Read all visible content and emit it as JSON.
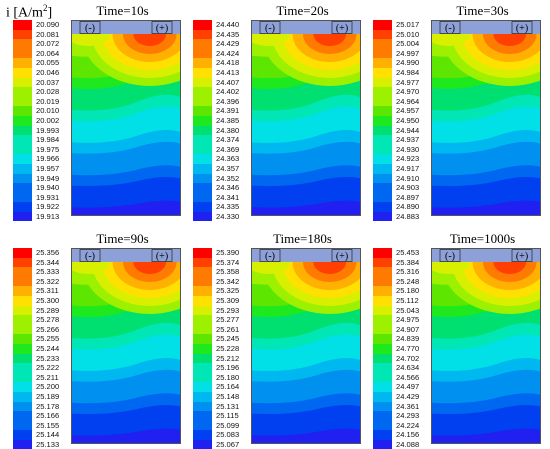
{
  "quantity_label": "i [A/m",
  "quantity_label_sup": "2",
  "quantity_label_end": "]",
  "electrode_minus": "(-)",
  "electrode_plus": "(+)",
  "colors": {
    "scale": [
      "#ff0000",
      "#ff4000",
      "#ff7a00",
      "#ffb000",
      "#ffe000",
      "#d8f000",
      "#9cf000",
      "#5ce600",
      "#1ee81e",
      "#00e070",
      "#00e6b4",
      "#00e0e6",
      "#00b8f0",
      "#0090f0",
      "#0068f0",
      "#0040f0",
      "#2020f0"
    ],
    "header_band": "#8ea0d8"
  },
  "chart_data": [
    {
      "type": "heatmap",
      "title": "Time=10s",
      "legend": [
        "20.090",
        "20.081",
        "20.072",
        "20.064",
        "20.055",
        "20.046",
        "20.037",
        "20.028",
        "20.019",
        "20.010",
        "20.002",
        "19.993",
        "19.984",
        "19.975",
        "19.966",
        "19.957",
        "19.949",
        "19.940",
        "19.931",
        "19.922",
        "19.913"
      ]
    },
    {
      "type": "heatmap",
      "title": "Time=20s",
      "legend": [
        "24.440",
        "24.435",
        "24.429",
        "24.424",
        "24.418",
        "24.413",
        "24.407",
        "24.402",
        "24.396",
        "24.391",
        "24.385",
        "24.380",
        "24.374",
        "24.369",
        "24.363",
        "24.357",
        "24.352",
        "24.346",
        "24.341",
        "24.335",
        "24.330"
      ]
    },
    {
      "type": "heatmap",
      "title": "Time=30s",
      "legend": [
        "25.017",
        "25.010",
        "25.004",
        "24.997",
        "24.990",
        "24.984",
        "24.977",
        "24.970",
        "24.964",
        "24.957",
        "24.950",
        "24.944",
        "24.937",
        "24.930",
        "24.923",
        "24.917",
        "24.910",
        "24.903",
        "24.897",
        "24.890",
        "24.883"
      ]
    },
    {
      "type": "heatmap",
      "title": "Time=90s",
      "legend": [
        "25.356",
        "25.344",
        "25.333",
        "25.322",
        "25.311",
        "25.300",
        "25.289",
        "25.278",
        "25.266",
        "25.255",
        "25.244",
        "25.233",
        "25.222",
        "25.211",
        "25.200",
        "25.189",
        "25.178",
        "25.166",
        "25.155",
        "25.144",
        "25.133"
      ]
    },
    {
      "type": "heatmap",
      "title": "Time=180s",
      "legend": [
        "25.390",
        "25.374",
        "25.358",
        "25.342",
        "25.325",
        "25.309",
        "25.293",
        "25.277",
        "25.261",
        "25.245",
        "25.228",
        "25.212",
        "25.196",
        "25.180",
        "25.164",
        "25.148",
        "25.131",
        "25.115",
        "25.099",
        "25.083",
        "25.067"
      ]
    },
    {
      "type": "heatmap",
      "title": "Time=1000s",
      "legend": [
        "25.453",
        "25.384",
        "25.316",
        "25.248",
        "25.180",
        "25.112",
        "25.043",
        "24.975",
        "24.907",
        "24.839",
        "24.770",
        "24.702",
        "24.634",
        "24.566",
        "24.497",
        "24.429",
        "24.361",
        "24.293",
        "24.224",
        "24.156",
        "24.088"
      ]
    }
  ]
}
